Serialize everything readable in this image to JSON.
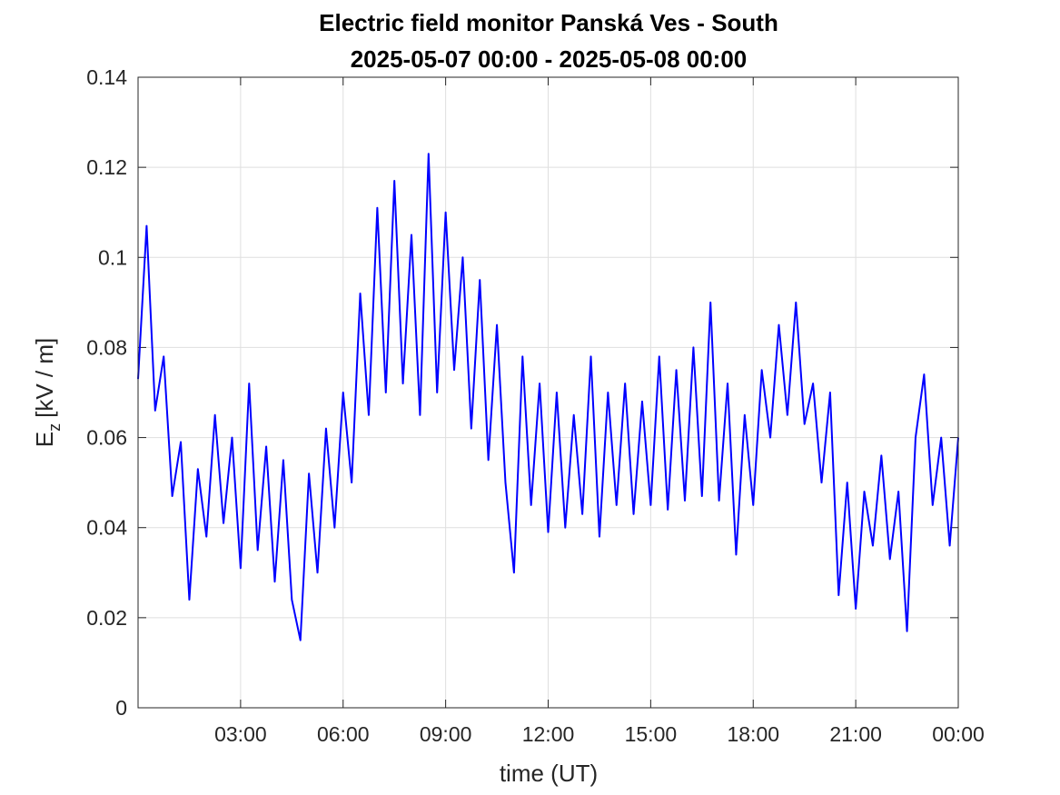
{
  "chart_data": {
    "type": "line",
    "title": [
      "Electric field monitor Panská Ves - South",
      "2025-05-07 00:00 - 2025-05-08 00:00"
    ],
    "xlabel": "time (UT)",
    "ylabel": {
      "main": "E",
      "sub": "z",
      "unit": "[kV / m]"
    },
    "x": [
      0,
      0.25,
      0.5,
      0.75,
      1,
      1.25,
      1.5,
      1.75,
      2,
      2.25,
      2.5,
      2.75,
      3,
      3.25,
      3.5,
      3.75,
      4,
      4.25,
      4.5,
      4.75,
      5,
      5.25,
      5.5,
      5.75,
      6,
      6.25,
      6.5,
      6.75,
      7,
      7.25,
      7.5,
      7.75,
      8,
      8.25,
      8.5,
      8.75,
      9,
      9.25,
      9.5,
      9.75,
      10,
      10.25,
      10.5,
      10.75,
      11,
      11.25,
      11.5,
      11.75,
      12,
      12.25,
      12.5,
      12.75,
      13,
      13.25,
      13.5,
      13.75,
      14,
      14.25,
      14.5,
      14.75,
      15,
      15.25,
      15.5,
      15.75,
      16,
      16.25,
      16.5,
      16.75,
      17,
      17.25,
      17.5,
      17.75,
      18,
      18.25,
      18.5,
      18.75,
      19,
      19.25,
      19.5,
      19.75,
      20,
      20.25,
      20.5,
      20.75,
      21,
      21.25,
      21.5,
      21.75,
      22,
      22.25,
      22.5,
      22.75,
      23,
      23.25,
      23.5,
      23.75,
      24
    ],
    "series": [
      {
        "color": "#0000ff",
        "values": [
          0.073,
          0.107,
          0.066,
          0.078,
          0.047,
          0.059,
          0.024,
          0.053,
          0.038,
          0.065,
          0.041,
          0.06,
          0.031,
          0.072,
          0.035,
          0.058,
          0.028,
          0.055,
          0.024,
          0.015,
          0.052,
          0.03,
          0.062,
          0.04,
          0.07,
          0.05,
          0.092,
          0.065,
          0.111,
          0.07,
          0.117,
          0.072,
          0.105,
          0.065,
          0.123,
          0.07,
          0.11,
          0.075,
          0.1,
          0.062,
          0.095,
          0.055,
          0.085,
          0.05,
          0.03,
          0.078,
          0.045,
          0.072,
          0.039,
          0.07,
          0.04,
          0.065,
          0.043,
          0.078,
          0.038,
          0.07,
          0.045,
          0.072,
          0.043,
          0.068,
          0.045,
          0.078,
          0.044,
          0.075,
          0.046,
          0.08,
          0.047,
          0.09,
          0.046,
          0.072,
          0.034,
          0.065,
          0.045,
          0.075,
          0.06,
          0.085,
          0.065,
          0.09,
          0.063,
          0.072,
          0.05,
          0.07,
          0.025,
          0.05,
          0.022,
          0.048,
          0.036,
          0.056,
          0.033,
          0.048,
          0.017,
          0.06,
          0.074,
          0.045,
          0.06,
          0.036,
          0.06
        ]
      }
    ],
    "xlim": [
      0,
      24
    ],
    "xticks": [
      {
        "value": 3,
        "label": "03:00"
      },
      {
        "value": 6,
        "label": "06:00"
      },
      {
        "value": 9,
        "label": "09:00"
      },
      {
        "value": 12,
        "label": "12:00"
      },
      {
        "value": 15,
        "label": "15:00"
      },
      {
        "value": 18,
        "label": "18:00"
      },
      {
        "value": 21,
        "label": "21:00"
      },
      {
        "value": 24,
        "label": "00:00"
      }
    ],
    "ylim": [
      0,
      0.14
    ],
    "yticks": [
      0,
      0.02,
      0.04,
      0.06,
      0.08,
      0.1,
      0.12,
      0.14
    ],
    "grid": true
  }
}
